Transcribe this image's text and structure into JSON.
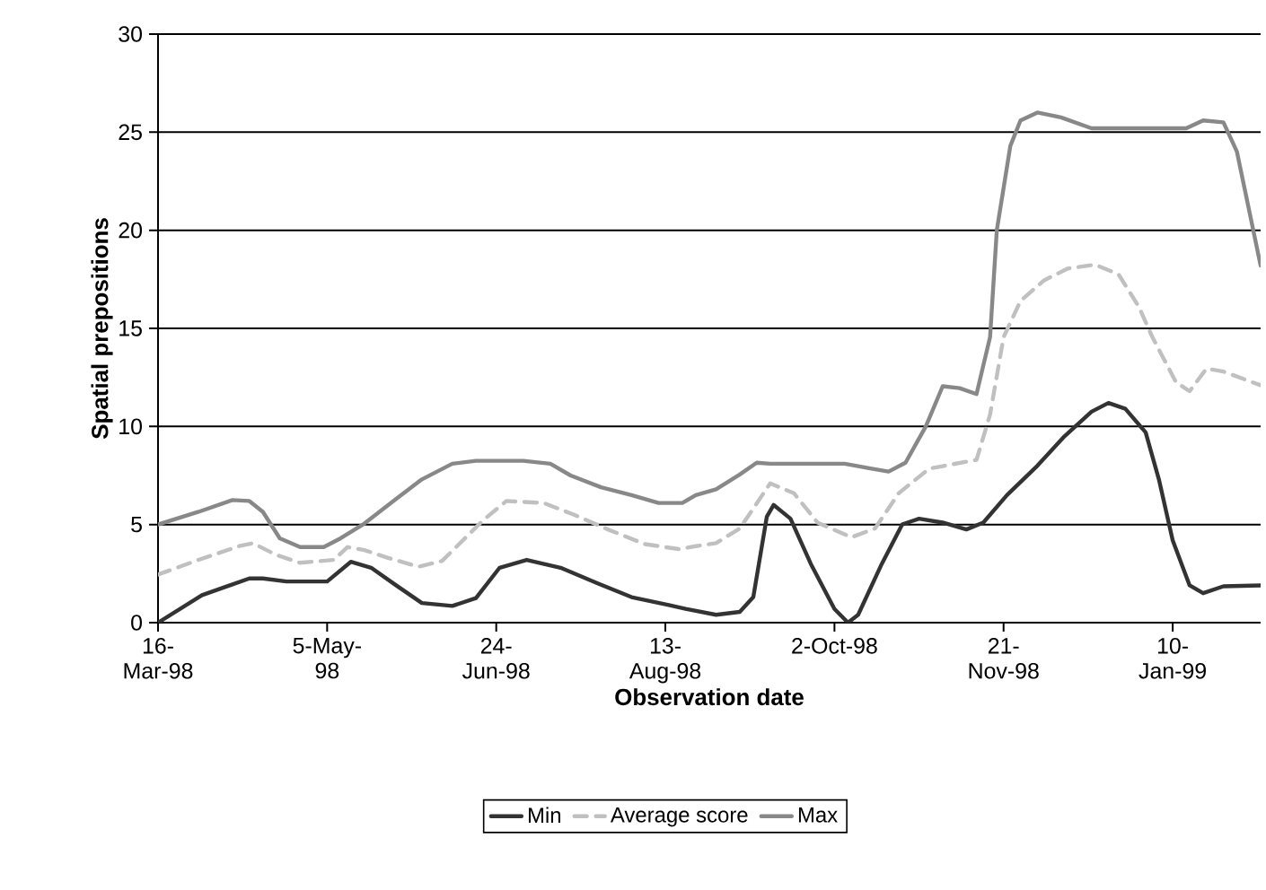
{
  "chart_data": {
    "type": "line",
    "xlabel": "Observation date",
    "ylabel": "Spatial prepositions",
    "xlim": [
      "1998-03-16",
      "1999-02-05"
    ],
    "ylim": [
      0,
      30
    ],
    "xticks": [
      {
        "value": "1998-03-16",
        "label": "16-Mar-98"
      },
      {
        "value": "1998-05-05",
        "label": "5-May-98"
      },
      {
        "value": "1998-06-24",
        "label": "24-Jun-98"
      },
      {
        "value": "1998-08-13",
        "label": "13-Aug-98"
      },
      {
        "value": "1998-10-02",
        "label": "2-Oct-98"
      },
      {
        "value": "1998-11-21",
        "label": "21-Nov-98"
      },
      {
        "value": "1999-01-10",
        "label": "10-Jan-99"
      }
    ],
    "yticks": [
      0,
      5,
      10,
      15,
      20,
      25,
      30
    ],
    "grid": "y",
    "legend": "bottom",
    "series": [
      {
        "name": "Min",
        "color": "#333333",
        "line_style": "solid",
        "x": [
          "1998-03-16",
          "1998-03-29",
          "1998-04-12",
          "1998-04-16",
          "1998-04-23",
          "1998-05-05",
          "1998-05-12",
          "1998-05-18",
          "1998-05-25",
          "1998-06-02",
          "1998-06-11",
          "1998-06-18",
          "1998-06-25",
          "1998-07-03",
          "1998-07-13",
          "1998-07-24",
          "1998-08-03",
          "1998-08-14",
          "1998-08-19",
          "1998-08-28",
          "1998-09-04",
          "1998-09-08",
          "1998-09-12",
          "1998-09-14",
          "1998-09-19",
          "1998-09-25",
          "1998-10-02",
          "1998-10-06",
          "1998-10-09",
          "1998-10-16",
          "1998-10-22",
          "1998-10-27",
          "1998-11-03",
          "1998-11-10",
          "1998-11-15",
          "1998-11-22",
          "1998-12-01",
          "1998-12-09",
          "1998-12-17",
          "1998-12-22",
          "1998-12-27",
          "1999-01-02",
          "1999-01-06",
          "1999-01-10",
          "1999-01-15",
          "1999-01-19",
          "1999-01-25",
          "1999-02-05"
        ],
        "values": [
          0,
          1.4,
          2.25,
          2.25,
          2.1,
          2.1,
          3.1,
          2.8,
          1.95,
          1.0,
          0.85,
          1.25,
          2.8,
          3.2,
          2.8,
          2.0,
          1.3,
          0.9,
          0.7,
          0.4,
          0.55,
          1.3,
          5.4,
          6.0,
          5.3,
          3.0,
          0.7,
          0,
          0.4,
          3.0,
          5.0,
          5.3,
          5.1,
          4.75,
          5.1,
          6.5,
          8.0,
          9.5,
          10.75,
          11.2,
          10.9,
          9.7,
          7.25,
          4.2,
          1.9,
          1.5,
          1.85,
          1.9
        ]
      },
      {
        "name": "Average score",
        "color": "#c0c0c0",
        "line_style": "dashed",
        "x": [
          "1998-03-16",
          "1998-03-28",
          "1998-04-09",
          "1998-04-13",
          "1998-04-20",
          "1998-04-27",
          "1998-05-07",
          "1998-05-11",
          "1998-05-16",
          "1998-05-23",
          "1998-06-01",
          "1998-06-08",
          "1998-06-13",
          "1998-06-20",
          "1998-06-27",
          "1998-07-08",
          "1998-07-17",
          "1998-07-27",
          "1998-08-07",
          "1998-08-17",
          "1998-08-22",
          "1998-08-28",
          "1998-09-04",
          "1998-09-13",
          "1998-09-20",
          "1998-09-27",
          "1998-10-07",
          "1998-10-14",
          "1998-10-21",
          "1998-10-30",
          "1998-11-13",
          "1998-11-17",
          "1998-11-21",
          "1998-11-26",
          "1998-12-03",
          "1998-12-10",
          "1998-12-18",
          "1998-12-25",
          "1998-12-31",
          "1999-01-04",
          "1999-01-11",
          "1999-01-15",
          "1999-01-20",
          "1999-01-25",
          "1999-02-05"
        ],
        "values": [
          2.45,
          3.2,
          3.9,
          4.05,
          3.45,
          3.05,
          3.2,
          3.85,
          3.7,
          3.3,
          2.85,
          3.15,
          4.0,
          5.2,
          6.2,
          6.1,
          5.5,
          4.75,
          4.0,
          3.75,
          3.9,
          4.05,
          4.8,
          7.1,
          6.6,
          5.1,
          4.35,
          4.8,
          6.6,
          7.85,
          8.3,
          10.6,
          14.55,
          16.4,
          17.45,
          18.05,
          18.25,
          17.75,
          16.1,
          14.55,
          12.25,
          11.8,
          12.95,
          12.8,
          12.1
        ]
      },
      {
        "name": "Max",
        "color": "#888888",
        "line_style": "solid",
        "x": [
          "1998-03-16",
          "1998-03-28",
          "1998-04-07",
          "1998-04-12",
          "1998-04-16",
          "1998-04-21",
          "1998-04-27",
          "1998-05-04",
          "1998-05-09",
          "1998-05-16",
          "1998-05-25",
          "1998-06-02",
          "1998-06-11",
          "1998-06-18",
          "1998-07-02",
          "1998-07-10",
          "1998-07-16",
          "1998-07-25",
          "1998-08-03",
          "1998-08-11",
          "1998-08-18",
          "1998-08-22",
          "1998-08-28",
          "1998-09-04",
          "1998-09-09",
          "1998-09-13",
          "1998-10-05",
          "1998-10-13",
          "1998-10-18",
          "1998-10-23",
          "1998-10-29",
          "1998-11-03",
          "1998-11-08",
          "1998-11-13",
          "1998-11-17",
          "1998-11-19",
          "1998-11-23",
          "1998-11-26",
          "1998-12-01",
          "1998-12-08",
          "1998-12-17",
          "1999-01-14",
          "1999-01-19",
          "1999-01-25",
          "1999-01-29",
          "1999-02-05"
        ],
        "values": [
          5.0,
          5.65,
          6.25,
          6.2,
          5.65,
          4.3,
          3.85,
          3.85,
          4.3,
          5.05,
          6.25,
          7.3,
          8.1,
          8.25,
          8.25,
          8.1,
          7.5,
          6.9,
          6.5,
          6.1,
          6.1,
          6.5,
          6.8,
          7.55,
          8.15,
          8.1,
          8.1,
          7.85,
          7.7,
          8.15,
          10.0,
          12.05,
          11.95,
          11.65,
          14.55,
          20.0,
          24.3,
          25.6,
          26.0,
          25.75,
          25.2,
          25.2,
          25.6,
          25.5,
          24,
          18.2
        ]
      }
    ]
  }
}
